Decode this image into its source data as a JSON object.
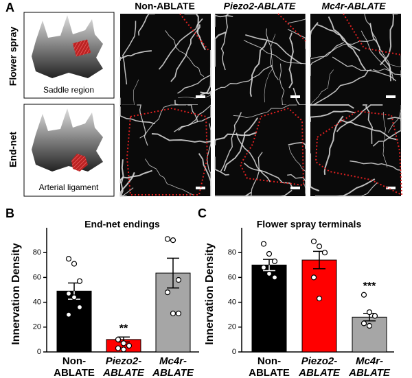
{
  "panel_labels": [
    "A",
    "B",
    "C"
  ],
  "column_headers": [
    "Non-ABLATE",
    "Piezo2-ABLATE",
    "Mc4r-ABLATE"
  ],
  "row_labels": [
    "Flower spray",
    "End-net"
  ],
  "schematic_labels": [
    "Saddle region",
    "Arterial ligament"
  ],
  "chart_data": [
    {
      "type": "bar",
      "title": "End-net endings",
      "y_label": "Innervation Density",
      "categories": [
        "Non-ABLATE",
        "Piezo2-ABLATE",
        "Mc4r-ABLATE"
      ],
      "values": [
        49,
        10,
        63.5
      ],
      "errors": [
        6.5,
        2,
        12
      ],
      "colors": [
        "#000000",
        "#ff0000",
        "#a6a6a6"
      ],
      "points": [
        [
          75,
          71,
          57,
          47,
          44,
          36,
          30
        ],
        [
          10,
          7,
          5,
          3,
          2
        ],
        [
          91,
          90,
          58,
          48,
          31,
          31
        ]
      ],
      "significance": [
        null,
        "**",
        null
      ],
      "ylim": [
        0,
        100
      ],
      "yticks": [
        0,
        20,
        40,
        60,
        80
      ]
    },
    {
      "type": "bar",
      "title": "Flower spray terminals",
      "y_label": "Innervation Density",
      "categories": [
        "Non-ABLATE",
        "Piezo2-ABLATE",
        "Mc4r-ABLATE"
      ],
      "values": [
        70,
        74,
        28
      ],
      "errors": [
        4.5,
        7,
        3
      ],
      "colors": [
        "#000000",
        "#ff0000",
        "#a6a6a6"
      ],
      "points": [
        [
          87,
          79,
          73,
          68,
          63,
          60
        ],
        [
          89,
          85,
          80,
          60,
          43
        ],
        [
          46,
          32,
          29,
          23,
          21
        ]
      ],
      "significance": [
        null,
        null,
        "***"
      ],
      "ylim": [
        0,
        100
      ],
      "yticks": [
        0,
        20,
        40,
        60,
        80
      ]
    }
  ]
}
